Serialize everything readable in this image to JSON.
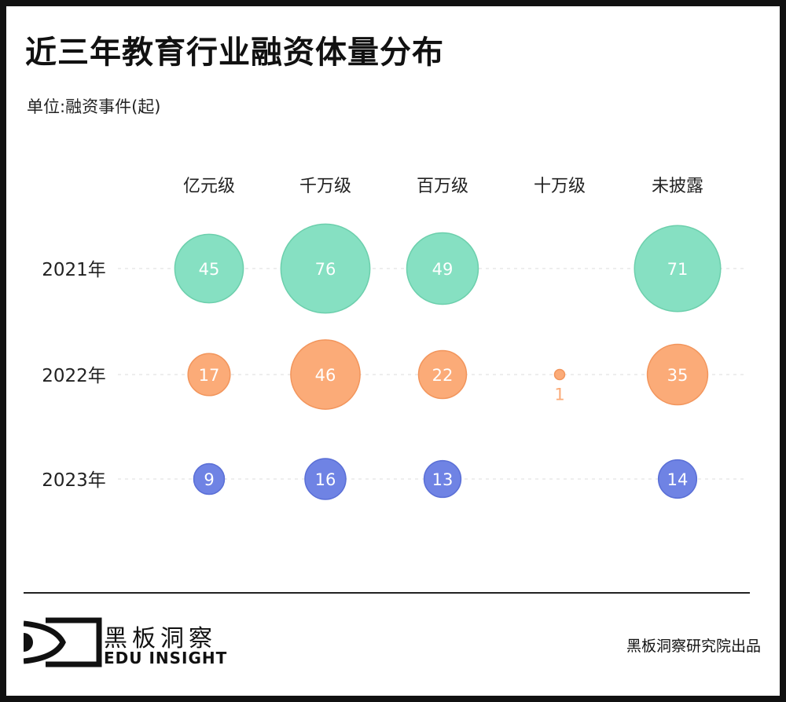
{
  "title": "近三年教育行业融资体量分布",
  "unit": "单位:融资事件(起)",
  "chart_data": {
    "type": "scatter",
    "subtype": "bubble",
    "categories": [
      "亿元级",
      "千万级",
      "百万级",
      "十万级",
      "未披露"
    ],
    "rows": [
      "2021年",
      "2022年",
      "2023年"
    ],
    "series": [
      {
        "name": "2021年",
        "color": "#86e0c2",
        "values": [
          45,
          76,
          49,
          null,
          71
        ]
      },
      {
        "name": "2022年",
        "color": "#fbab78",
        "values": [
          17,
          46,
          22,
          1,
          35
        ]
      },
      {
        "name": "2023年",
        "color": "#6f83e4",
        "values": [
          9,
          16,
          13,
          null,
          14
        ]
      }
    ],
    "grid": "horizontal dashed"
  },
  "footer": {
    "logo_cn": "黑板洞察",
    "logo_en": "EDU INSIGHT",
    "source": "黑板洞察研究院出品"
  }
}
